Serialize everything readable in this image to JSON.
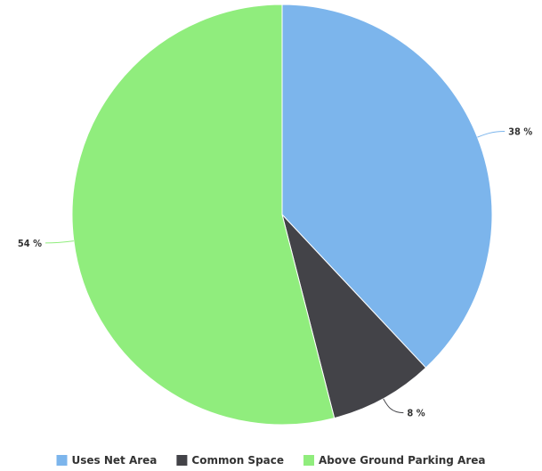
{
  "chart_data": {
    "type": "pie",
    "title": "",
    "start_angle_deg": 0,
    "direction": "clockwise",
    "legend_position": "bottom",
    "slices": [
      {
        "name": "Uses Net Area",
        "value": 38,
        "label": "38 %",
        "color": "#7cb5ec"
      },
      {
        "name": "Common Space",
        "value": 8,
        "label": "8 %",
        "color": "#434348"
      },
      {
        "name": "Above Ground Parking Area",
        "value": 54,
        "label": "54 %",
        "color": "#90ed7d"
      }
    ]
  }
}
